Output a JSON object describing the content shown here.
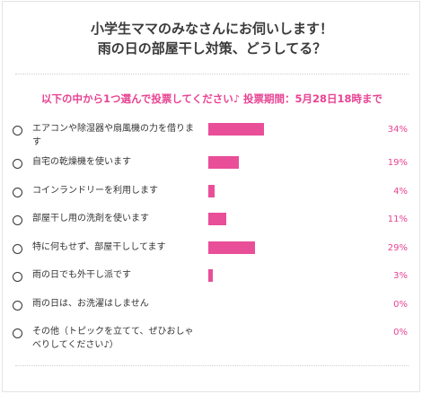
{
  "header": {
    "title_line1": "小学生ママのみなさんにお伺いします！",
    "title_line2": "雨の日の部屋干し対策、どうしてる？"
  },
  "notice": "以下の中から1つ選んで投票してください♪ 投票期間：5月28日18時まで",
  "colors": {
    "accent": "#e84393",
    "bar": "#e94e98",
    "text": "#333333"
  },
  "options": [
    {
      "label": "エアコンや除湿器や扇風機の力を借ります",
      "percent": 34,
      "percent_label": "34%"
    },
    {
      "label": "自宅の乾燥機を使います",
      "percent": 19,
      "percent_label": "19%"
    },
    {
      "label": "コインランドリーを利用します",
      "percent": 4,
      "percent_label": "4%"
    },
    {
      "label": "部屋干し用の洗剤を使います",
      "percent": 11,
      "percent_label": "11%"
    },
    {
      "label": "特に何もせず、部屋干ししてます",
      "percent": 29,
      "percent_label": "29%"
    },
    {
      "label": "雨の日でも外干し派です",
      "percent": 3,
      "percent_label": "3%"
    },
    {
      "label": "雨の日は、お洗濯はしません",
      "percent": 0,
      "percent_label": "0%"
    },
    {
      "label": "その他（トピックを立てて、ぜひおしゃべりしてください♪）",
      "percent": 0,
      "percent_label": "0%"
    }
  ]
}
